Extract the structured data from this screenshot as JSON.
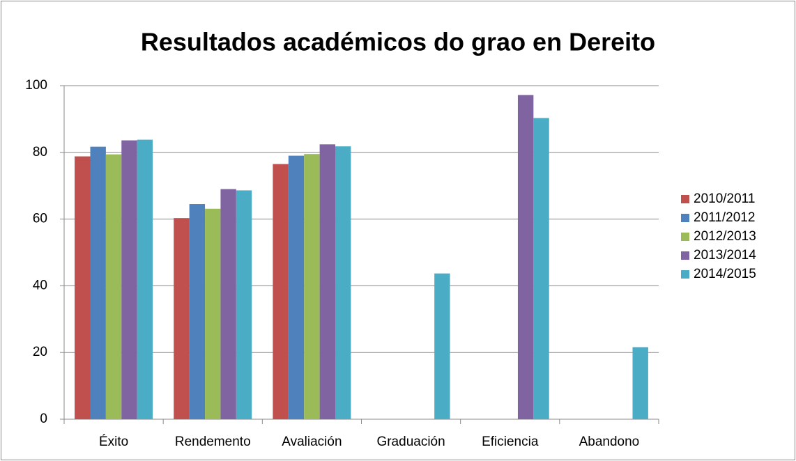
{
  "chart_data": {
    "type": "bar",
    "title": "Resultados académicos do grao en Dereito",
    "categories": [
      "Éxito",
      "Rendemento",
      "Avaliación",
      "Graduación",
      "Eficiencia",
      "Abandono"
    ],
    "series": [
      {
        "name": "2010/2011",
        "color": "#c0504d",
        "values": [
          78.8,
          60.3,
          76.5,
          null,
          null,
          null
        ]
      },
      {
        "name": "2011/2012",
        "color": "#4f81bd",
        "values": [
          81.7,
          64.5,
          79.0,
          null,
          null,
          null
        ]
      },
      {
        "name": "2012/2013",
        "color": "#9bbb59",
        "values": [
          79.4,
          63.1,
          79.5,
          null,
          null,
          null
        ]
      },
      {
        "name": "2013/2014",
        "color": "#8064a2",
        "values": [
          83.6,
          69.0,
          82.4,
          null,
          97.2,
          null
        ]
      },
      {
        "name": "2014/2015",
        "color": "#4bacc6",
        "values": [
          83.8,
          68.6,
          81.8,
          43.7,
          90.3,
          21.6
        ]
      }
    ],
    "ylim": [
      0,
      100
    ],
    "yticks": [
      0,
      20,
      40,
      60,
      80,
      100
    ],
    "grid": true,
    "legend": "right"
  }
}
